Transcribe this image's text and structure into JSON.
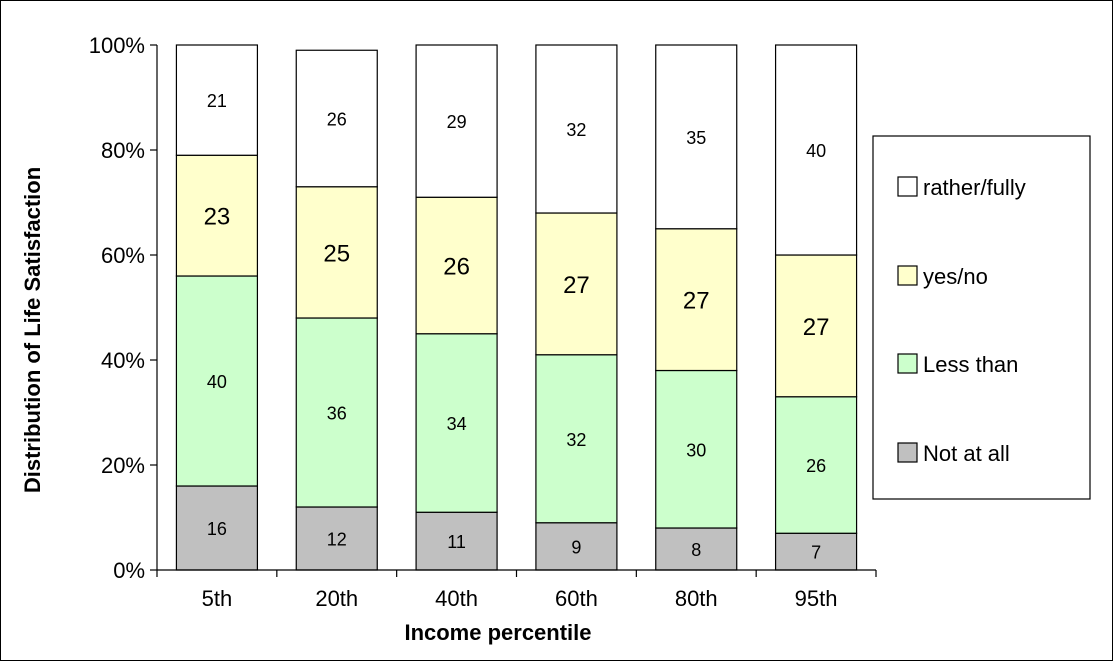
{
  "chart_data": {
    "type": "bar",
    "stacked": true,
    "normalized_percent": true,
    "xlabel": "Income percentile",
    "ylabel": "Distribution of Life Satisfaction",
    "categories": [
      "5th",
      "20th",
      "40th",
      "60th",
      "80th",
      "95th"
    ],
    "y_ticks": [
      "0%",
      "20%",
      "40%",
      "60%",
      "80%",
      "100%"
    ],
    "ylim": [
      0,
      100
    ],
    "grid": false,
    "legend_position": "right",
    "series": [
      {
        "name": "Not at all",
        "color": "#c0c0c0",
        "label_size": "small",
        "values": [
          16,
          12,
          11,
          9,
          8,
          7
        ]
      },
      {
        "name": "Less than",
        "color": "#ccffcc",
        "label_size": "small",
        "values": [
          40,
          36,
          34,
          32,
          30,
          26
        ]
      },
      {
        "name": "yes/no",
        "color": "#ffffcc",
        "label_size": "large",
        "values": [
          23,
          25,
          26,
          27,
          27,
          27
        ]
      },
      {
        "name": "rather/fully",
        "color": "#ffffff",
        "label_size": "small",
        "values": [
          21,
          26,
          29,
          32,
          35,
          40
        ]
      }
    ],
    "legend_order": [
      "rather/fully",
      "yes/no",
      "Less than",
      "Not at all"
    ]
  }
}
